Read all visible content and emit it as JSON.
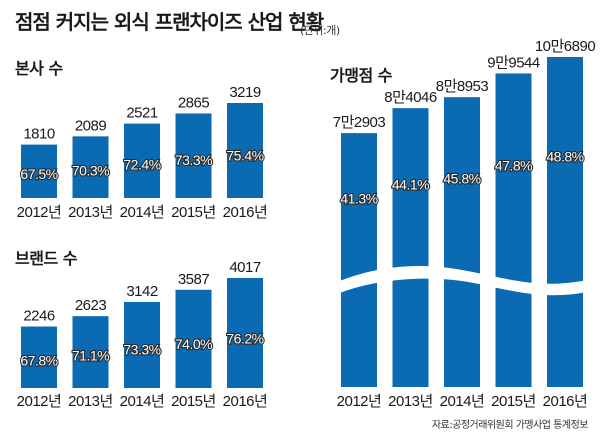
{
  "title": "점점 커지는 외식 프랜차이즈 산업 현황",
  "unit": "(단위:개)",
  "source": "자료:공정거래위원회 가맹사업 통계정보",
  "colors": {
    "bar": "#0a6bb3",
    "text": "#1a1a1a"
  },
  "chart_data": [
    {
      "type": "bar",
      "title": "본사 수",
      "categories": [
        "2012년",
        "2013년",
        "2014년",
        "2015년",
        "2016년"
      ],
      "values": [
        1810,
        2089,
        2521,
        2865,
        3219
      ],
      "value_labels": [
        "1810",
        "2089",
        "2521",
        "2865",
        "3219"
      ],
      "inner_labels": [
        "67.5%",
        "70.3%",
        "72.4%",
        "73.3%",
        "75.4%"
      ],
      "xlabel": "",
      "ylabel": ""
    },
    {
      "type": "bar",
      "title": "브랜드 수",
      "categories": [
        "2012년",
        "2013년",
        "2014년",
        "2015년",
        "2016년"
      ],
      "values": [
        2246,
        2623,
        3142,
        3587,
        4017
      ],
      "value_labels": [
        "2246",
        "2623",
        "3142",
        "3587",
        "4017"
      ],
      "inner_labels": [
        "67.8%",
        "71.1%",
        "73.3%",
        "74.0%",
        "76.2%"
      ],
      "xlabel": "",
      "ylabel": ""
    },
    {
      "type": "bar",
      "title": "가맹점 수",
      "categories": [
        "2012년",
        "2013년",
        "2014년",
        "2015년",
        "2016년"
      ],
      "values": [
        72903,
        84046,
        88953,
        99544,
        106890
      ],
      "value_labels": [
        "7만2903",
        "8만4046",
        "8만8953",
        "9만9544",
        "10만6890"
      ],
      "inner_labels": [
        "41.3%",
        "44.1%",
        "45.8%",
        "47.8%",
        "48.8%"
      ],
      "axis_break": true,
      "xlabel": "",
      "ylabel": ""
    }
  ]
}
